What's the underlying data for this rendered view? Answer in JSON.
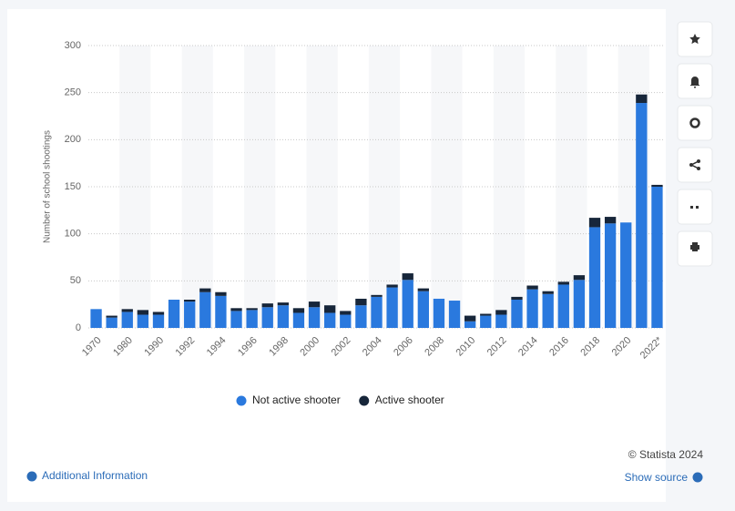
{
  "chart_data": {
    "type": "bar",
    "stacked": true,
    "y_label": "Number of school shootings",
    "categories": [
      "1970",
      null,
      "1980",
      null,
      "1990",
      null,
      "1992",
      null,
      "1994",
      null,
      "1996",
      null,
      "1998",
      null,
      "2000",
      null,
      "2002",
      null,
      "2004",
      null,
      "2006",
      null,
      "2008",
      null,
      "2010",
      null,
      "2012",
      null,
      "2014",
      null,
      "2016",
      null,
      "2018",
      null,
      "2020",
      null,
      "2022*"
    ],
    "series": [
      {
        "name": "Not active shooter",
        "color": "#2a79de",
        "values": [
          20,
          11,
          17,
          14,
          14,
          30,
          28,
          38,
          34,
          18,
          19,
          22,
          24,
          16,
          22,
          16,
          14,
          24,
          33,
          43,
          51,
          39,
          31,
          29,
          7,
          13,
          14,
          30,
          41,
          36,
          46,
          51,
          107,
          111,
          112,
          239,
          150
        ]
      },
      {
        "name": "Active shooter",
        "color": "#17263a",
        "values": [
          0,
          2,
          3,
          5,
          3,
          0,
          2,
          4,
          4,
          3,
          2,
          4,
          3,
          5,
          6,
          8,
          4,
          7,
          2,
          3,
          7,
          3,
          0,
          0,
          6,
          2,
          5,
          3,
          4,
          3,
          3,
          5,
          10,
          7,
          0,
          9,
          2
        ]
      }
    ],
    "ylim": [
      0,
      300
    ],
    "yticks": [
      0,
      50,
      100,
      150,
      200,
      250,
      300
    ],
    "grid": true,
    "legend": "bottom"
  },
  "footer": {
    "copyright": "© Statista 2024",
    "show_source": "Show source",
    "additional_information": "Additional Information"
  }
}
